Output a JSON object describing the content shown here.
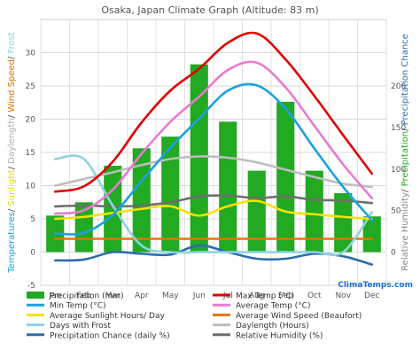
{
  "chart_data": {
    "type": "bar",
    "title": "Osaka, Japan Climate Graph (Altitude: 83 m)",
    "categories": [
      "Jan",
      "Feb",
      "Mar",
      "Apr",
      "May",
      "Jun",
      "Jul",
      "Aug",
      "Sep",
      "Oct",
      "Nov",
      "Dec"
    ],
    "left_axis": {
      "label_parts": [
        {
          "text": "Temperatures",
          "color": "#1ba1e2"
        },
        {
          "text": "/ ",
          "color": "#555555"
        },
        {
          "text": "Sunlight",
          "color": "#e8d800"
        },
        {
          "text": "/ ",
          "color": "#555555"
        },
        {
          "text": "Daylength",
          "color": "#b0b0b0"
        },
        {
          "text": "/ ",
          "color": "#555555"
        },
        {
          "text": "Wind Speed",
          "color": "#d97000"
        },
        {
          "text": "/ ",
          "color": "#555555"
        },
        {
          "text": "Frost",
          "color": "#8fd3e0"
        }
      ],
      "ylim": [
        -5,
        35
      ],
      "ticks": [
        "-5",
        "0",
        "5",
        "10",
        "15",
        "20",
        "25",
        "30"
      ]
    },
    "right_axis": {
      "label_parts": [
        {
          "text": "Relative Humidity",
          "color": "#888888"
        },
        {
          "text": "/ ",
          "color": "#555555"
        },
        {
          "text": "Precipitation",
          "color": "#22aa22"
        },
        {
          "text": "/ ",
          "color": "#555555"
        },
        {
          "text": "Precipitation Chance",
          "color": "#2d6dab"
        }
      ],
      "ylim": [
        -40,
        280
      ],
      "ticks": [
        "0",
        "50",
        "100",
        "150",
        "200"
      ]
    },
    "series": [
      {
        "name": "Precipitation (mm)",
        "kind": "bar",
        "axis": "right",
        "color": "#22aa22",
        "values": [
          44,
          60,
          104,
          125,
          139,
          226,
          157,
          98,
          181,
          98,
          71,
          43
        ]
      },
      {
        "name": "Max Temp (°C)",
        "kind": "line",
        "axis": "left",
        "color": "#e00000",
        "values": [
          9.1,
          9.9,
          13.6,
          19.5,
          24.3,
          27.6,
          31.5,
          32.9,
          29.0,
          23.5,
          17.6,
          11.8
        ]
      },
      {
        "name": "Min Temp (°C)",
        "kind": "line",
        "axis": "left",
        "color": "#1ba1e2",
        "values": [
          2.8,
          2.9,
          5.6,
          10.7,
          15.7,
          20.1,
          24.3,
          25.1,
          21.6,
          15.6,
          9.8,
          4.8
        ]
      },
      {
        "name": "Average Temp (°C)",
        "kind": "line",
        "axis": "left",
        "color": "#e87ad0",
        "values": [
          5.8,
          6.3,
          9.4,
          14.8,
          19.6,
          23.4,
          27.4,
          28.5,
          24.8,
          19.0,
          13.2,
          8.1
        ]
      },
      {
        "name": "Average Sunlight Hours/ Day",
        "kind": "line",
        "axis": "left",
        "color": "#f2e300",
        "values": [
          5.0,
          5.3,
          5.9,
          6.5,
          6.9,
          5.5,
          6.9,
          7.7,
          6.1,
          5.7,
          5.3,
          5.0
        ]
      },
      {
        "name": "Average Wind Speed (Beaufort)",
        "kind": "line",
        "axis": "left",
        "color": "#e07800",
        "values": [
          2,
          2,
          2,
          2,
          2,
          2,
          2,
          2,
          2,
          2,
          2,
          2
        ]
      },
      {
        "name": "Days with Frost",
        "kind": "line",
        "axis": "left",
        "color": "#8fd3e0",
        "values": [
          14,
          14,
          7,
          1,
          0,
          0,
          0,
          0,
          0,
          0,
          0,
          6
        ]
      },
      {
        "name": "Daylength (Hours)",
        "kind": "line",
        "axis": "left",
        "color": "#bdbdbd",
        "values": [
          10.0,
          11.0,
          12.0,
          13.1,
          14.0,
          14.4,
          14.2,
          13.5,
          12.4,
          11.3,
          10.3,
          9.8
        ]
      },
      {
        "name": "Precipitation Chance (daily %)",
        "kind": "line",
        "axis": "right",
        "color": "#2d6dab",
        "values": [
          -10,
          -9,
          0,
          -2,
          -3,
          8,
          0,
          -8,
          -8,
          -2,
          -5,
          -15
        ]
      },
      {
        "name": "Relative Humidity (%)",
        "kind": "line",
        "axis": "right",
        "color": "#6e6e6e",
        "values": [
          55,
          56,
          55,
          56,
          60,
          67,
          68,
          65,
          67,
          63,
          62,
          59
        ]
      }
    ],
    "grid": true,
    "legend_position": "bottom"
  },
  "branding": {
    "site": "ClimaTemps.com"
  }
}
